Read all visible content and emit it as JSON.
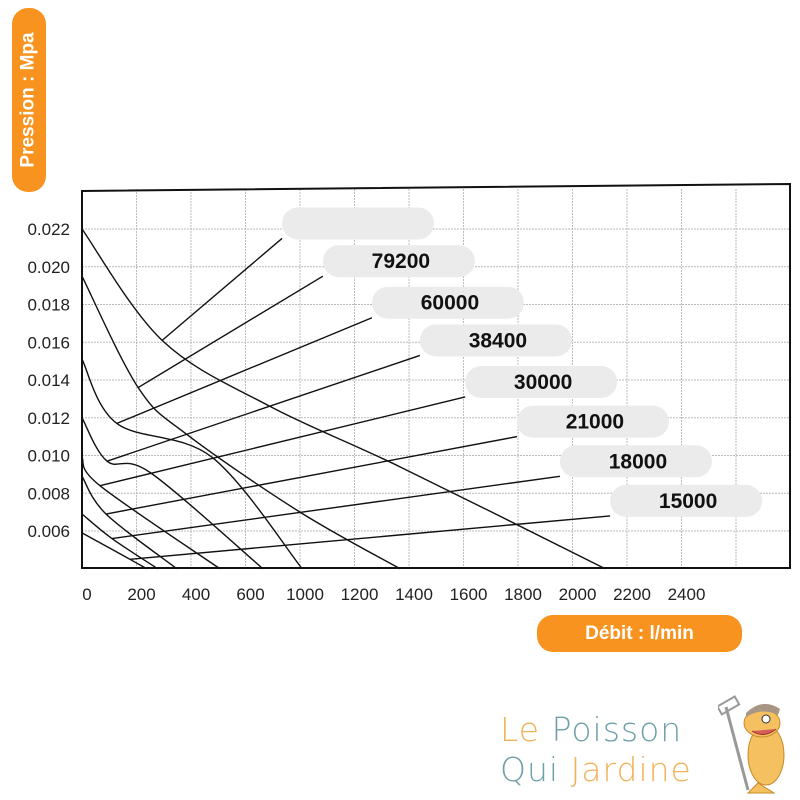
{
  "chart_data": {
    "type": "line",
    "title": "",
    "xlabel": "Débit : l/min",
    "ylabel": "Pression : Mpa",
    "x_ticks": [
      0,
      200,
      400,
      600,
      1000,
      1200,
      1400,
      1600,
      1800,
      2000,
      2200,
      2400
    ],
    "x_tick_labels": [
      "0",
      "200",
      "400",
      "600",
      "1000",
      "1200",
      "1400",
      "1600",
      "1800",
      "2000",
      "2200",
      "2400"
    ],
    "y_ticks": [
      0.022,
      0.02,
      0.018,
      0.016,
      0.014,
      0.012,
      0.01,
      0.008,
      0.006
    ],
    "y_tick_labels": [
      "0.022",
      "0.020",
      "0.018",
      "0.016",
      "0.014",
      "0.012",
      "0.010",
      "0.008",
      "0.006"
    ],
    "ylim": [
      0.004,
      0.0244
    ],
    "grid": true,
    "curves": [
      [
        [
          0,
          0.022
        ],
        [
          294,
          0.0161
        ],
        [
          780,
          0.0126
        ],
        [
          1367,
          0.0094
        ],
        [
          2120,
          0.004
        ]
      ],
      [
        [
          0,
          0.0195
        ],
        [
          206,
          0.0136
        ],
        [
          386,
          0.0111
        ],
        [
          1000,
          0.007
        ],
        [
          1367,
          0.004
        ]
      ],
      [
        [
          0,
          0.0151
        ],
        [
          128,
          0.0117
        ],
        [
          478,
          0.0099
        ],
        [
          1008,
          0.004
        ]
      ],
      [
        [
          0,
          0.012
        ],
        [
          92,
          0.0097
        ],
        [
          250,
          0.0091
        ],
        [
          728,
          0.004
        ]
      ],
      [
        [
          0,
          0.0099
        ],
        [
          66,
          0.0084
        ],
        [
          506,
          0.004
        ]
      ],
      [
        [
          0,
          0.0089
        ],
        [
          88,
          0.0069
        ],
        [
          348,
          0.004
        ]
      ],
      [
        [
          0,
          0.0069
        ],
        [
          110,
          0.0056
        ],
        [
          278,
          0.004
        ]
      ],
      [
        [
          0,
          0.0059
        ],
        [
          176,
          0.0045
        ],
        [
          238,
          0.004
        ]
      ]
    ],
    "series": [
      {
        "name": "",
        "from": [
          294,
          0.0161
        ],
        "to": [
          868,
          0.0215
        ]
      },
      {
        "name": "79200",
        "from": [
          206,
          0.0136
        ],
        "to": [
          1084,
          0.0195
        ]
      },
      {
        "name": "60000",
        "from": [
          128,
          0.0117
        ],
        "to": [
          1264,
          0.0173
        ]
      },
      {
        "name": "38400",
        "from": [
          92,
          0.0097
        ],
        "to": [
          1440,
          0.0153
        ]
      },
      {
        "name": "30000",
        "from": [
          66,
          0.0084
        ],
        "to": [
          1606,
          0.0131
        ]
      },
      {
        "name": "21000",
        "from": [
          88,
          0.0069
        ],
        "to": [
          1796,
          0.011
        ]
      },
      {
        "name": "18000",
        "from": [
          110,
          0.0056
        ],
        "to": [
          1954,
          0.0089
        ]
      },
      {
        "name": "15000",
        "from": [
          176,
          0.0045
        ],
        "to": [
          2138,
          0.0068
        ]
      }
    ]
  },
  "colors": {
    "accent": "#f7931e",
    "label_pill": "#ebebeb",
    "logo_orange": "#f2b25a",
    "logo_teal": "#6f9fa8"
  },
  "logo": {
    "word1": "Le",
    "word2": "Poisson",
    "word3": "Qui",
    "word4": "Jardine",
    "mascot": "fish-with-rake"
  }
}
